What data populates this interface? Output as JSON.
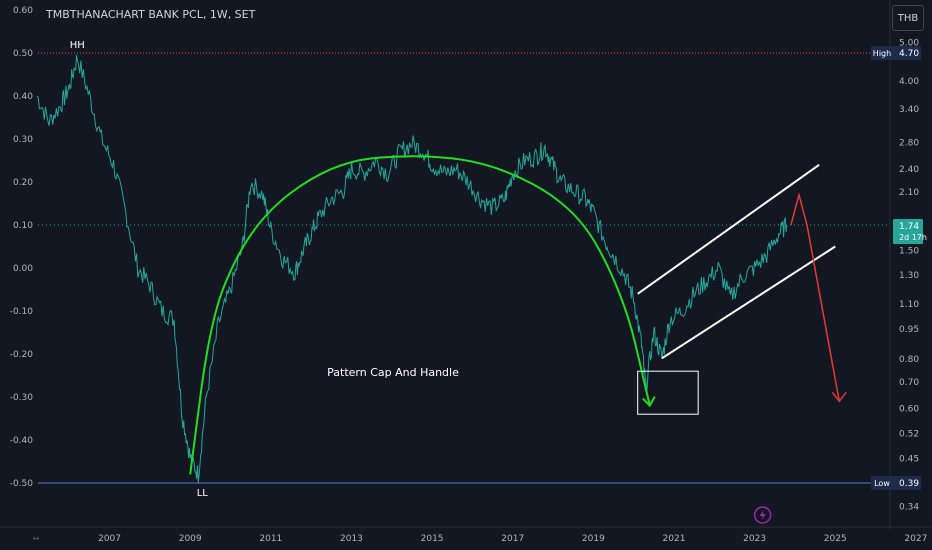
{
  "title": "TMBTHANACHART BANK PCL, 1W, SET",
  "currency": "THB",
  "colors": {
    "background": "#131722",
    "price_line": "#26a69a",
    "cup_curve": "#22dd22",
    "channel": "#ffffff",
    "projection": "#e53935",
    "high_line": "#f44336",
    "low_line": "#5b7bd5",
    "current_price_bg": "#26a69a",
    "label_bg": "#1e2a4a"
  },
  "annotations": {
    "pattern_label": "Pattern Cap And Handle",
    "hh_label": "HH",
    "ll_label": "LL",
    "high_tag": "High",
    "high_value": "4.70",
    "low_tag": "Low",
    "low_value": "0.39",
    "current_price": "1.74",
    "countdown": "2d 17h",
    "lightning_icon": "lightning-icon"
  },
  "chart_data": {
    "type": "line",
    "title": "TMBTHANACHART BANK PCL, 1W, SET",
    "xlabel": "",
    "ylabel": "",
    "xlim": [
      2005.2,
      2027.4
    ],
    "x_ticks": [
      "2007",
      "2009",
      "2011",
      "2013",
      "2015",
      "2017",
      "2019",
      "2021",
      "2023",
      "2025",
      "2027"
    ],
    "left_axis": {
      "ylim": [
        -0.5,
        0.6
      ],
      "ticks": [
        "0.60",
        "0.50",
        "0.40",
        "0.30",
        "0.20",
        "0.10",
        "0.00",
        "-0.10",
        "-0.20",
        "-0.30",
        "-0.40",
        "-0.50"
      ]
    },
    "right_axis": {
      "scale": "log",
      "ticks": [
        "5.00",
        "4.00",
        "3.40",
        "2.80",
        "2.40",
        "2.10",
        "1.50",
        "1.30",
        "1.10",
        "0.95",
        "0.80",
        "0.70",
        "0.60",
        "0.52",
        "0.45",
        "0.34"
      ]
    },
    "series": [
      {
        "x": [
          2005.2,
          2005.5,
          2005.8,
          2006.0,
          2006.2,
          2006.5,
          2006.8,
          2007.1,
          2007.4,
          2007.7,
          2008.0,
          2008.3,
          2008.6,
          2008.8,
          2009.0,
          2009.2,
          2009.4,
          2009.7,
          2010.0,
          2010.3,
          2010.5,
          2010.8,
          2011.0,
          2011.3,
          2011.6,
          2011.8,
          2012.0,
          2012.2,
          2012.5,
          2012.8,
          2013.0,
          2013.3,
          2013.6,
          2013.9,
          2014.2,
          2014.5,
          2014.8,
          2015.0,
          2015.3,
          2015.6,
          2015.9,
          2016.2,
          2016.5,
          2016.8,
          2017.0,
          2017.3,
          2017.6,
          2017.8,
          2018.0,
          2018.2,
          2018.5,
          2018.8,
          2019.0,
          2019.3,
          2019.5,
          2019.8,
          2020.0,
          2020.2,
          2020.3,
          2020.5,
          2020.7,
          2020.9,
          2021.2,
          2021.5,
          2021.8,
          2022.1,
          2022.4,
          2022.7,
          2023.0,
          2023.3,
          2023.6,
          2023.8
        ],
        "values": [
          0.4,
          0.34,
          0.38,
          0.42,
          0.49,
          0.4,
          0.3,
          0.24,
          0.13,
          0.0,
          -0.04,
          -0.1,
          -0.12,
          -0.34,
          -0.44,
          -0.48,
          -0.3,
          -0.13,
          -0.05,
          0.05,
          0.2,
          0.17,
          0.09,
          0.02,
          -0.01,
          0.04,
          0.08,
          0.12,
          0.16,
          0.18,
          0.23,
          0.22,
          0.25,
          0.22,
          0.27,
          0.29,
          0.27,
          0.24,
          0.22,
          0.23,
          0.2,
          0.16,
          0.14,
          0.16,
          0.22,
          0.25,
          0.26,
          0.28,
          0.24,
          0.2,
          0.18,
          0.16,
          0.13,
          0.06,
          0.03,
          -0.02,
          -0.07,
          -0.18,
          -0.28,
          -0.15,
          -0.21,
          -0.12,
          -0.1,
          -0.06,
          -0.03,
          0.0,
          -0.07,
          -0.02,
          0.0,
          0.03,
          0.08,
          0.1
        ]
      }
    ],
    "overlays": {
      "cup_curve": {
        "x": [
          2009.0,
          2009.5,
          2010.2,
          2011.0,
          2012.0,
          2013.0,
          2014.0,
          2015.0,
          2016.0,
          2017.0,
          2018.0,
          2018.8,
          2019.4,
          2019.9,
          2020.2
        ],
        "values": [
          -0.48,
          -0.12,
          0.04,
          0.14,
          0.21,
          0.25,
          0.26,
          0.26,
          0.25,
          0.22,
          0.17,
          0.1,
          0.0,
          -0.12,
          -0.24
        ]
      },
      "cup_arrow_end": {
        "x": 2020.4,
        "y": -0.32
      },
      "channel_upper": {
        "x": [
          2020.1,
          2024.6
        ],
        "values": [
          -0.06,
          0.24
        ]
      },
      "channel_lower": {
        "x": [
          2020.7,
          2025.0
        ],
        "values": [
          -0.21,
          0.05
        ]
      },
      "projection": {
        "x": [
          2023.9,
          2024.1,
          2024.3,
          2025.1
        ],
        "values": [
          0.1,
          0.17,
          0.1,
          -0.31
        ]
      },
      "handle_box": {
        "x": [
          2020.1,
          2021.6
        ],
        "y": [
          -0.34,
          -0.24
        ]
      },
      "high_line_y": 0.5,
      "low_line_y": -0.5,
      "current_line_y": 0.1
    },
    "grid": false,
    "legend": "none"
  }
}
